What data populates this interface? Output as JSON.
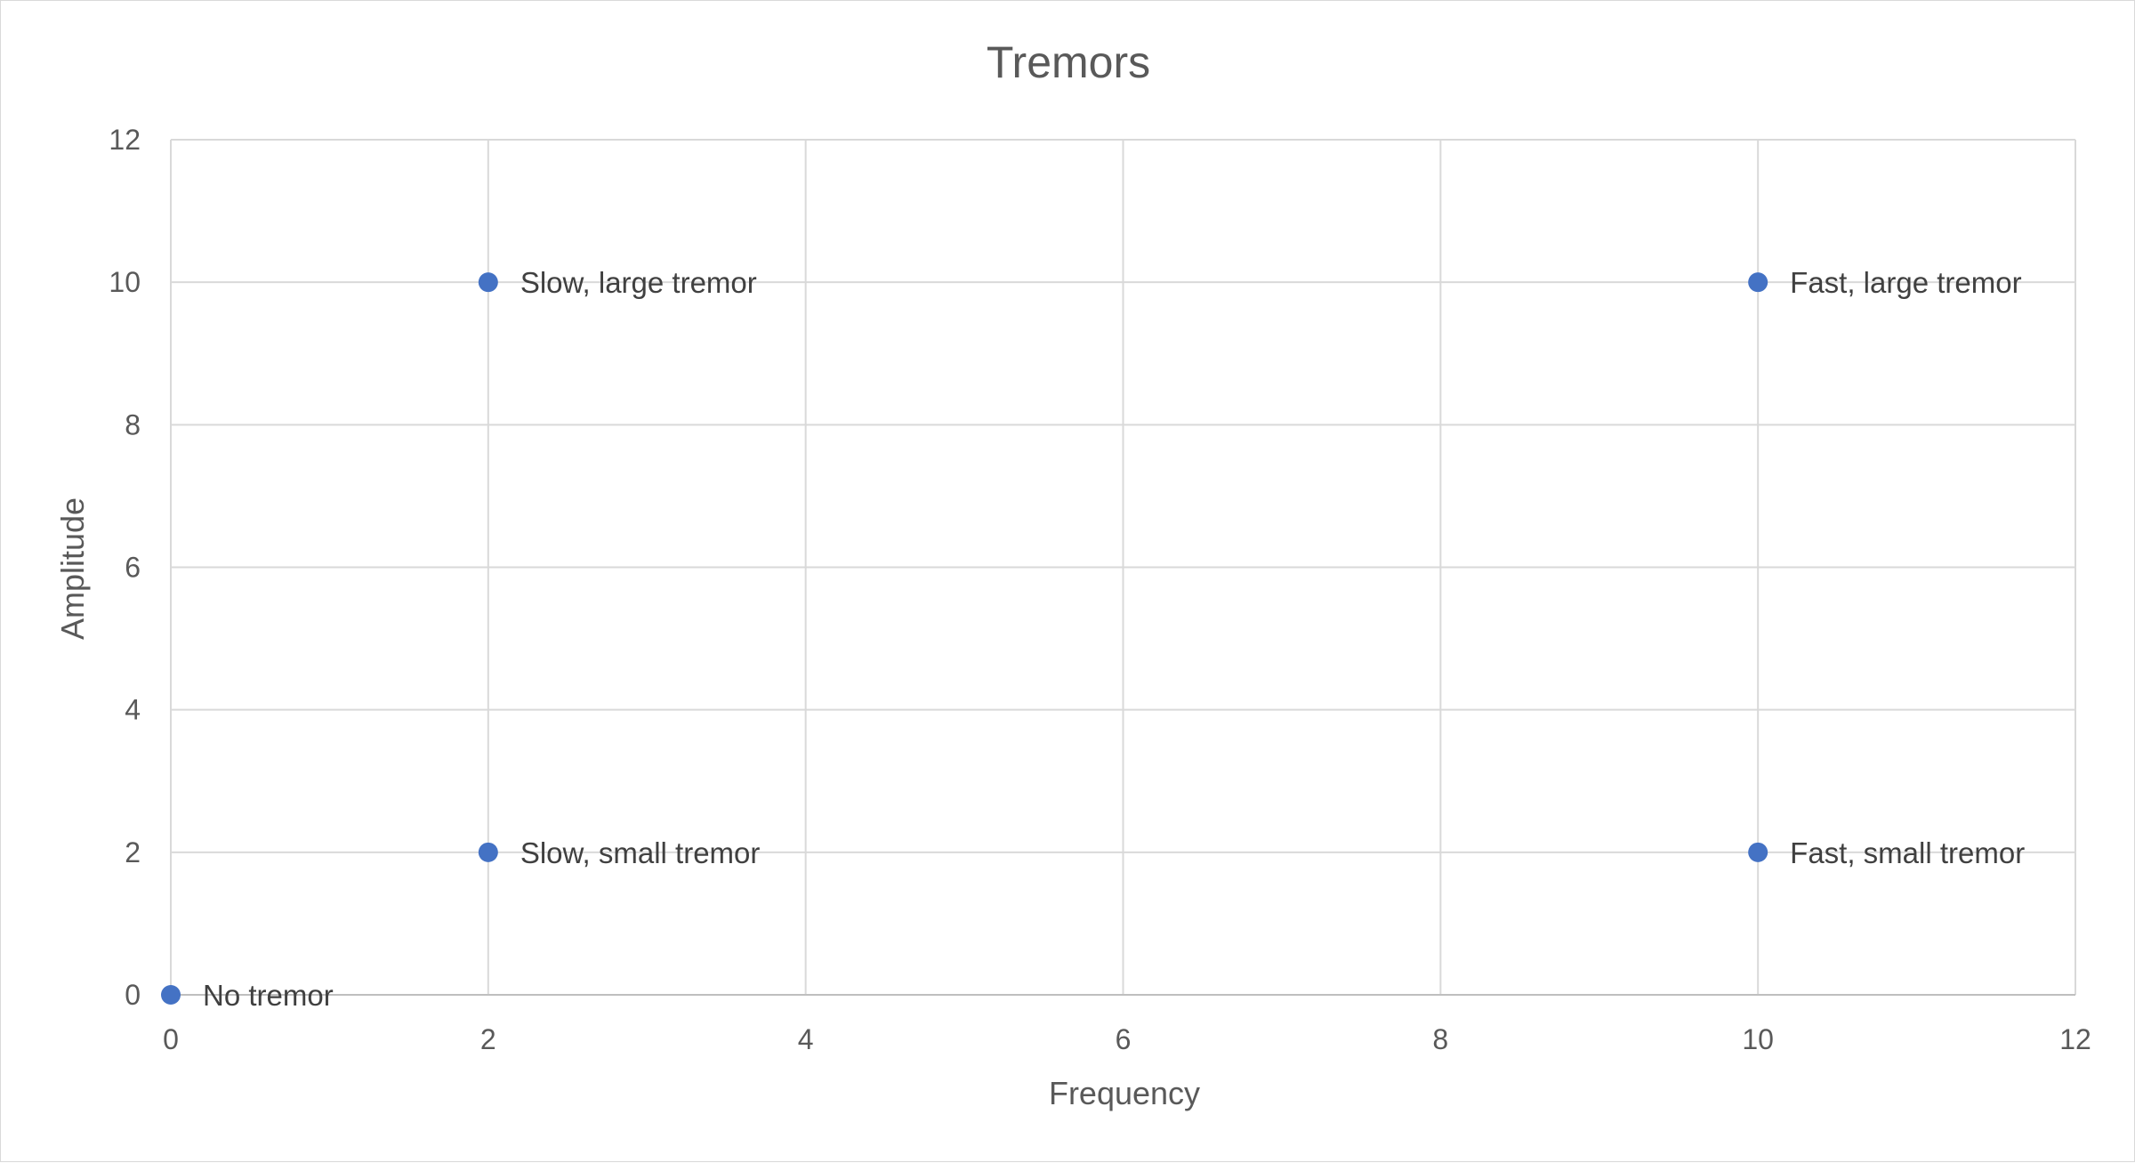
{
  "chart_data": {
    "type": "scatter",
    "title": "Tremors",
    "xlabel": "Frequency",
    "ylabel": "Amplitude",
    "xlim": [
      0,
      12
    ],
    "ylim": [
      0,
      12
    ],
    "xticks": [
      0,
      2,
      4,
      6,
      8,
      10,
      12
    ],
    "yticks": [
      0,
      2,
      4,
      6,
      8,
      10,
      12
    ],
    "grid": true,
    "marker_color": "#4472C4",
    "points": [
      {
        "x": 0,
        "y": 0,
        "label": "No tremor"
      },
      {
        "x": 2,
        "y": 2,
        "label": "Slow, small tremor"
      },
      {
        "x": 2,
        "y": 10,
        "label": "Slow, large tremor"
      },
      {
        "x": 10,
        "y": 2,
        "label": "Fast, small tremor"
      },
      {
        "x": 10,
        "y": 10,
        "label": "Fast, large tremor"
      }
    ]
  }
}
